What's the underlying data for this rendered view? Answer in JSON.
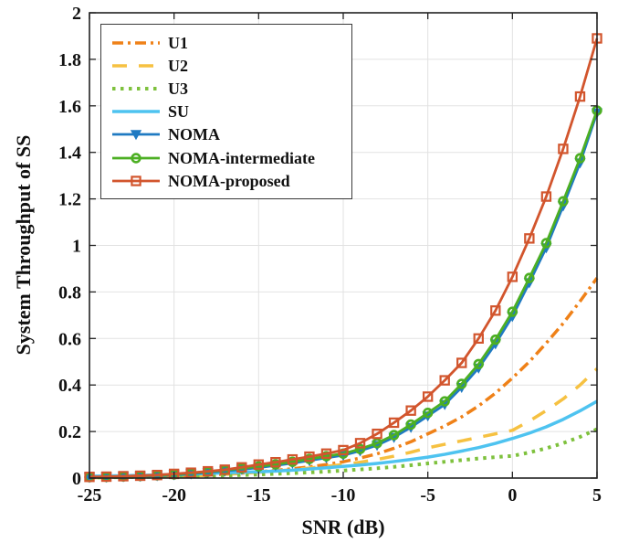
{
  "chart_data": {
    "type": "line",
    "title": "",
    "xlabel": "SNR (dB)",
    "ylabel": "System Throughput of SS",
    "xlim": [
      -25,
      5
    ],
    "ylim": [
      0,
      2
    ],
    "xticks": [
      -25,
      -20,
      -15,
      -10,
      -5,
      0,
      5
    ],
    "yticks": [
      0,
      0.2,
      0.4,
      0.6,
      0.8,
      1,
      1.2,
      1.4,
      1.6,
      1.8,
      2
    ],
    "grid": true,
    "legend_position": "top-left",
    "grid_color": "#e2e2e2",
    "axis_color": "#222222",
    "text_color": "#111111",
    "x": [
      -25,
      -24,
      -23,
      -22,
      -21,
      -20,
      -19,
      -18,
      -17,
      -16,
      -15,
      -14,
      -13,
      -12,
      -11,
      -10,
      -9,
      -8,
      -7,
      -6,
      -5,
      -4,
      -3,
      -2,
      -1,
      0,
      1,
      2,
      3,
      4,
      5
    ],
    "series": [
      {
        "name": "U1",
        "color": "#EF8118",
        "line": "dashdot",
        "marker": "none",
        "values": [
          0.002,
          0.003,
          0.004,
          0.005,
          0.006,
          0.008,
          0.01,
          0.013,
          0.017,
          0.021,
          0.027,
          0.033,
          0.04,
          0.048,
          0.058,
          0.07,
          0.086,
          0.104,
          0.128,
          0.156,
          0.19,
          0.224,
          0.263,
          0.31,
          0.365,
          0.43,
          0.5,
          0.58,
          0.665,
          0.76,
          0.86
        ]
      },
      {
        "name": "U2",
        "color": "#F6C141",
        "line": "dashed",
        "marker": "none",
        "values": [
          0.002,
          0.003,
          0.003,
          0.004,
          0.006,
          0.007,
          0.009,
          0.012,
          0.016,
          0.02,
          0.025,
          0.03,
          0.036,
          0.043,
          0.05,
          0.058,
          0.068,
          0.08,
          0.094,
          0.111,
          0.13,
          0.145,
          0.16,
          0.175,
          0.19,
          0.205,
          0.245,
          0.29,
          0.34,
          0.4,
          0.47
        ]
      },
      {
        "name": "U3",
        "color": "#7EC13D",
        "line": "dotted",
        "marker": "none",
        "values": [
          0.003,
          0.003,
          0.004,
          0.005,
          0.006,
          0.007,
          0.008,
          0.01,
          0.011,
          0.013,
          0.015,
          0.018,
          0.021,
          0.024,
          0.028,
          0.032,
          0.037,
          0.042,
          0.048,
          0.055,
          0.063,
          0.07,
          0.077,
          0.084,
          0.09,
          0.095,
          0.11,
          0.128,
          0.15,
          0.177,
          0.21
        ]
      },
      {
        "name": "SU",
        "color": "#4EC3F0",
        "line": "solid",
        "marker": "none",
        "values": [
          0.008,
          0.009,
          0.01,
          0.012,
          0.013,
          0.015,
          0.017,
          0.02,
          0.022,
          0.025,
          0.027,
          0.03,
          0.034,
          0.039,
          0.044,
          0.05,
          0.056,
          0.063,
          0.071,
          0.08,
          0.09,
          0.102,
          0.116,
          0.131,
          0.149,
          0.17,
          0.193,
          0.22,
          0.252,
          0.289,
          0.33
        ]
      },
      {
        "name": "NOMA",
        "color": "#1F7AC2",
        "line": "solid",
        "marker": "triangle-down",
        "values": [
          0.003,
          0.004,
          0.006,
          0.008,
          0.01,
          0.014,
          0.018,
          0.024,
          0.03,
          0.037,
          0.045,
          0.054,
          0.064,
          0.075,
          0.087,
          0.098,
          0.117,
          0.141,
          0.175,
          0.218,
          0.267,
          0.316,
          0.39,
          0.473,
          0.577,
          0.695,
          0.84,
          0.99,
          1.17,
          1.355,
          1.57
        ]
      },
      {
        "name": "NOMA-intermediate",
        "color": "#4CAF23",
        "line": "solid",
        "marker": "circle",
        "values": [
          0.004,
          0.005,
          0.007,
          0.009,
          0.012,
          0.016,
          0.021,
          0.027,
          0.034,
          0.042,
          0.05,
          0.059,
          0.07,
          0.082,
          0.094,
          0.105,
          0.125,
          0.15,
          0.185,
          0.23,
          0.28,
          0.33,
          0.405,
          0.49,
          0.595,
          0.715,
          0.86,
          1.01,
          1.19,
          1.375,
          1.58
        ]
      },
      {
        "name": "NOMA-proposed",
        "color": "#D2552D",
        "line": "solid",
        "marker": "square",
        "values": [
          0.005,
          0.006,
          0.008,
          0.01,
          0.013,
          0.018,
          0.023,
          0.029,
          0.036,
          0.046,
          0.058,
          0.068,
          0.08,
          0.092,
          0.105,
          0.12,
          0.15,
          0.19,
          0.238,
          0.29,
          0.35,
          0.42,
          0.495,
          0.6,
          0.72,
          0.865,
          1.03,
          1.21,
          1.415,
          1.64,
          1.89
        ]
      }
    ]
  }
}
